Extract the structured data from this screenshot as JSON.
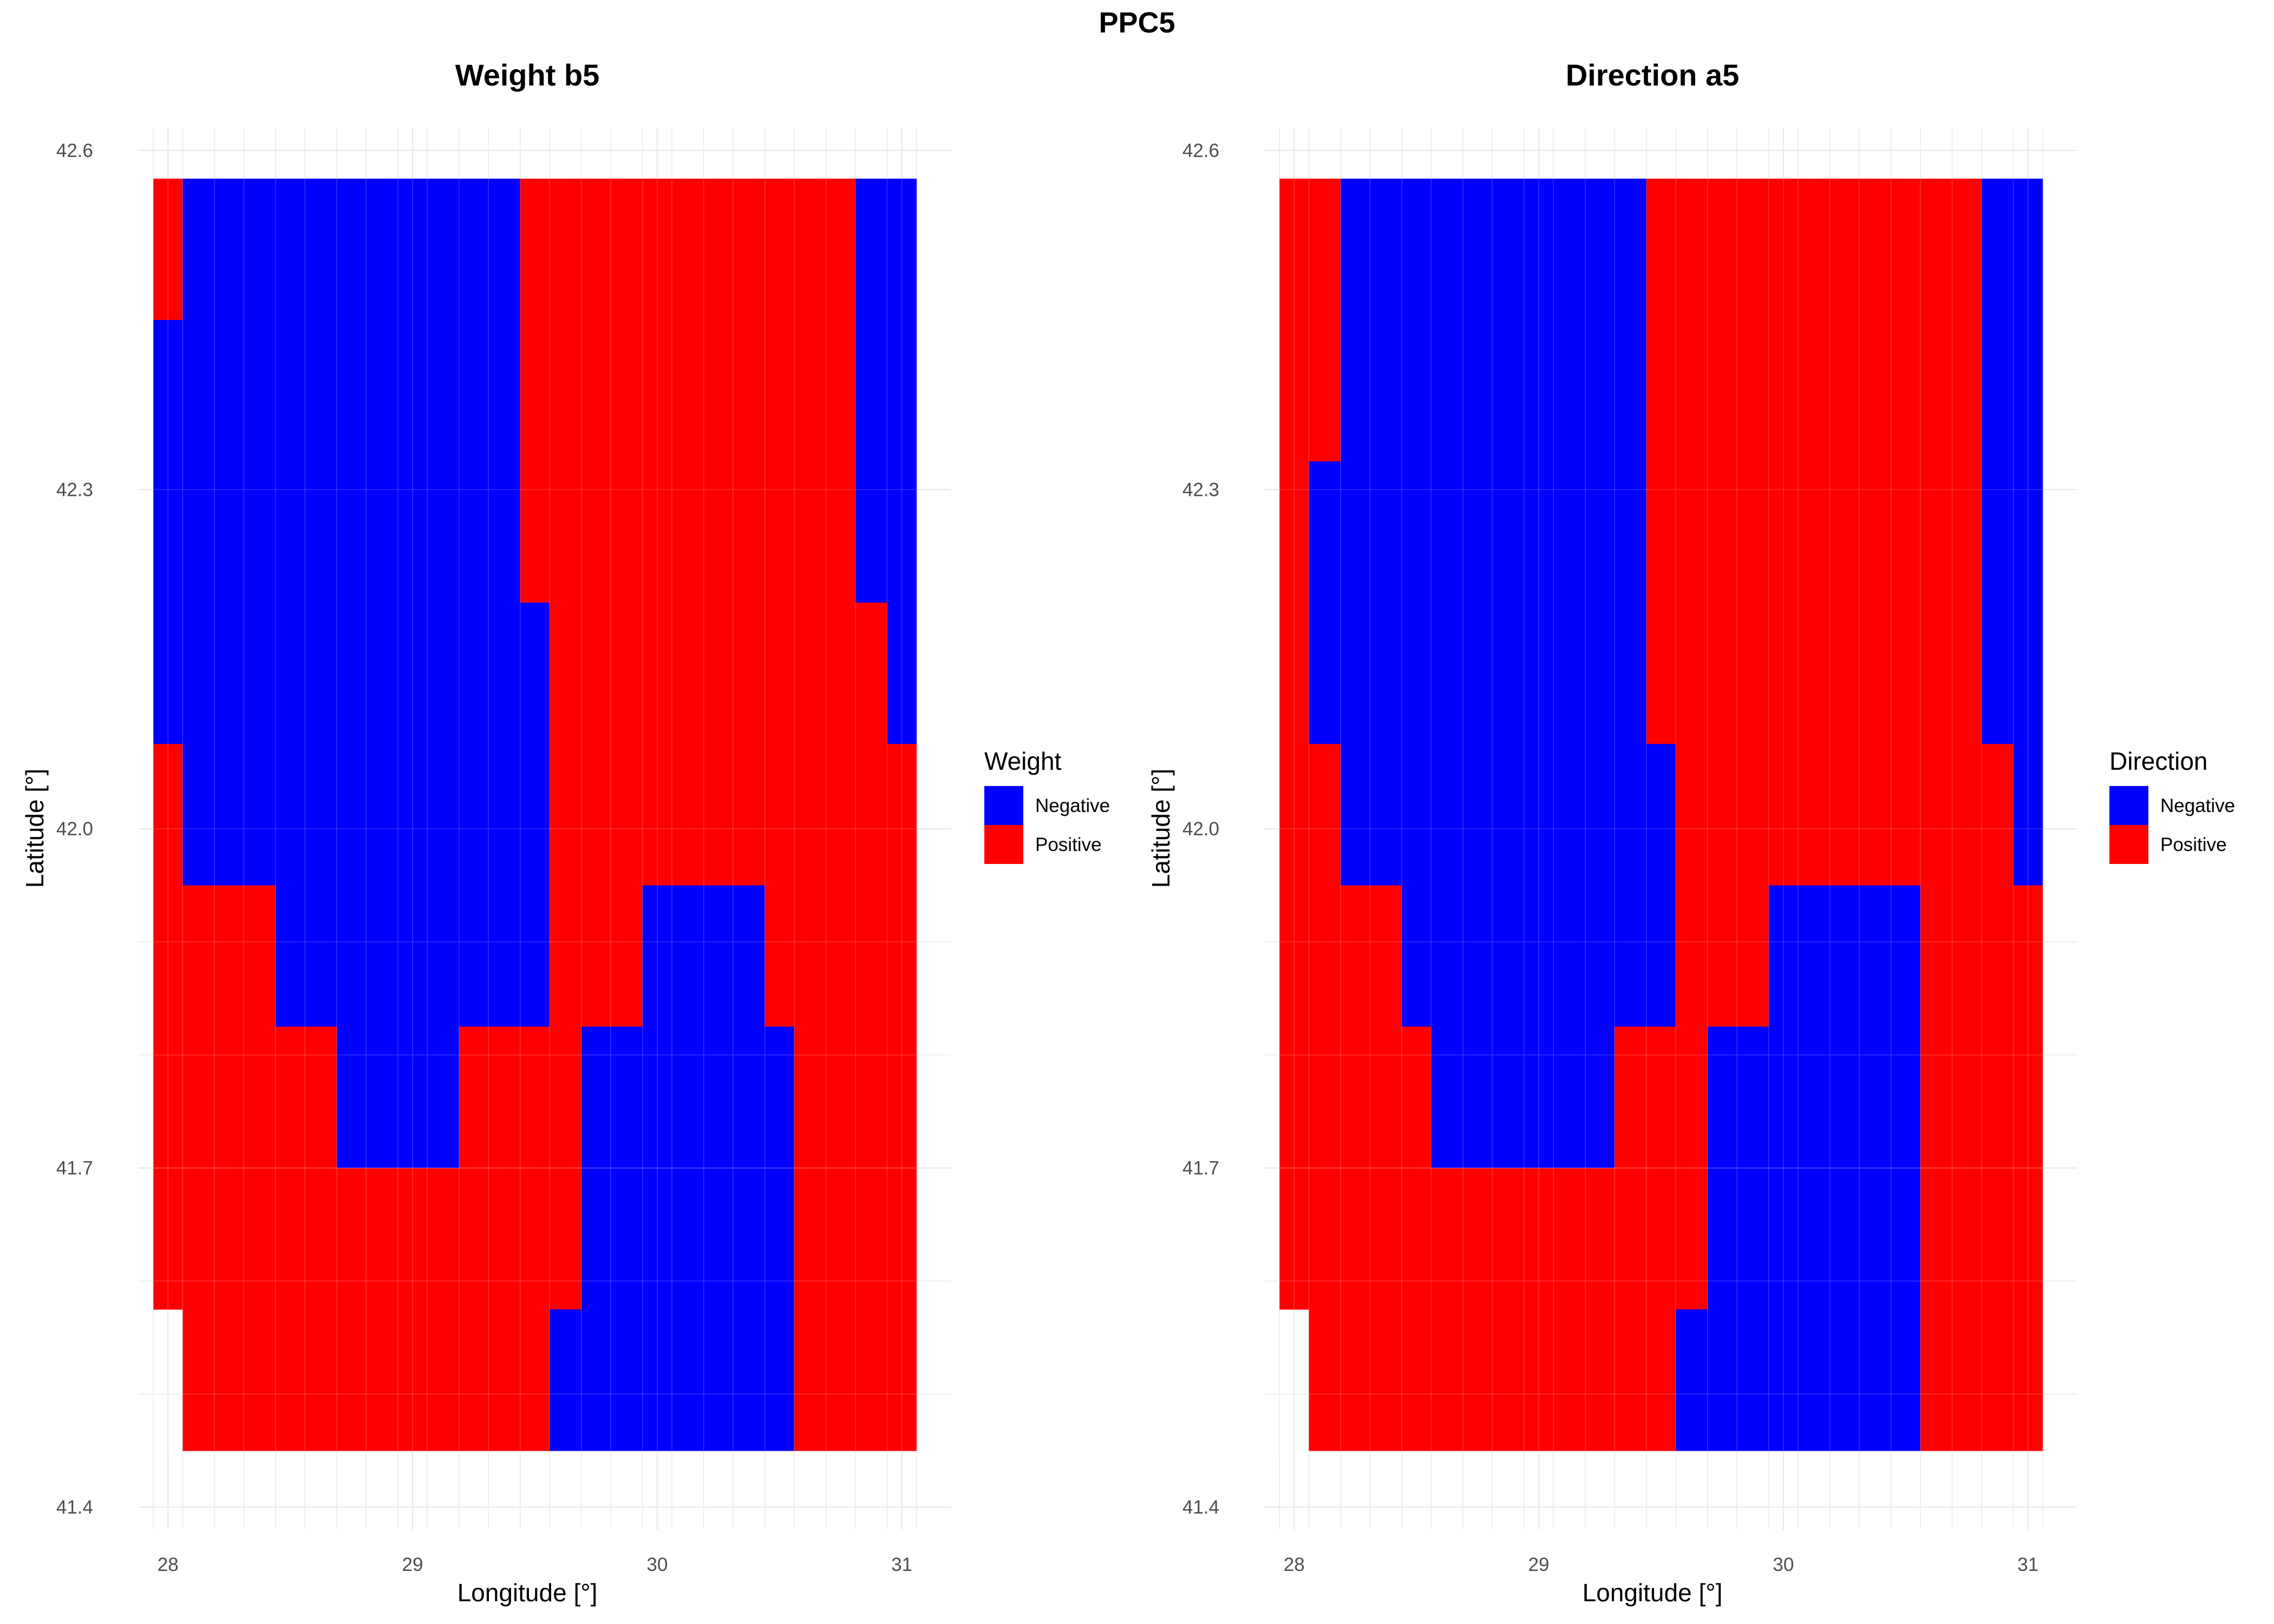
{
  "figure_title": "PPC5",
  "colors": {
    "Negative": "#0000ff",
    "Positive": "#ff0000",
    "grid": "#ebebeb"
  },
  "chart_data": [
    {
      "type": "heatmap",
      "title": "Weight b5",
      "xlabel": "Longitude [°]",
      "ylabel": "Latitude [°]",
      "xlim": [
        27.88,
        31.2
      ],
      "ylim": [
        41.38,
        42.62
      ],
      "x_ticks": [
        28,
        29,
        30,
        31
      ],
      "y_ticks": [
        41.4,
        41.7,
        42.0,
        42.3,
        42.6
      ],
      "x_tick_labels": [
        "28",
        "29",
        "30",
        "31"
      ],
      "y_tick_labels": [
        "41.4",
        "41.7",
        "42.0",
        "42.3",
        "42.6"
      ],
      "legend": {
        "title": "Weight",
        "position": "right",
        "entries": [
          "Negative",
          "Positive"
        ]
      },
      "x_breaks": [
        27.94,
        28.06,
        28.19,
        28.31,
        28.44,
        28.56,
        28.69,
        28.81,
        28.94,
        29.06,
        29.19,
        29.31,
        29.44,
        29.56,
        29.69,
        29.81,
        29.94,
        30.06,
        30.19,
        30.31,
        30.44,
        30.56,
        30.69,
        30.81,
        30.94,
        31.06
      ],
      "y_breaks": [
        41.5,
        41.6,
        41.7,
        41.8,
        41.9
      ],
      "cells": [
        {
          "x": [
            27.94,
            28.06
          ],
          "y": [
            42.45,
            42.575
          ],
          "v": "Positive"
        },
        {
          "x": [
            28.06,
            29.44
          ],
          "y": [
            42.45,
            42.575
          ],
          "v": "Negative"
        },
        {
          "x": [
            29.44,
            30.81
          ],
          "y": [
            42.45,
            42.575
          ],
          "v": "Positive"
        },
        {
          "x": [
            30.81,
            31.06
          ],
          "y": [
            42.45,
            42.575
          ],
          "v": "Negative"
        },
        {
          "x": [
            27.94,
            29.44
          ],
          "y": [
            42.2,
            42.45
          ],
          "v": "Negative"
        },
        {
          "x": [
            29.44,
            30.81
          ],
          "y": [
            42.2,
            42.45
          ],
          "v": "Positive"
        },
        {
          "x": [
            30.81,
            31.06
          ],
          "y": [
            42.2,
            42.45
          ],
          "v": "Negative"
        },
        {
          "x": [
            27.94,
            29.56
          ],
          "y": [
            42.075,
            42.2
          ],
          "v": "Negative"
        },
        {
          "x": [
            29.56,
            30.94
          ],
          "y": [
            42.075,
            42.2
          ],
          "v": "Positive"
        },
        {
          "x": [
            30.94,
            31.06
          ],
          "y": [
            42.075,
            42.2
          ],
          "v": "Negative"
        },
        {
          "x": [
            27.94,
            28.06
          ],
          "y": [
            41.95,
            42.075
          ],
          "v": "Positive"
        },
        {
          "x": [
            28.06,
            29.56
          ],
          "y": [
            41.95,
            42.075
          ],
          "v": "Negative"
        },
        {
          "x": [
            29.56,
            31.06
          ],
          "y": [
            41.95,
            42.075
          ],
          "v": "Positive"
        },
        {
          "x": [
            27.94,
            28.44
          ],
          "y": [
            41.825,
            41.95
          ],
          "v": "Positive"
        },
        {
          "x": [
            28.44,
            29.56
          ],
          "y": [
            41.825,
            41.95
          ],
          "v": "Negative"
        },
        {
          "x": [
            29.56,
            29.94
          ],
          "y": [
            41.825,
            41.95
          ],
          "v": "Positive"
        },
        {
          "x": [
            29.94,
            30.44
          ],
          "y": [
            41.825,
            41.95
          ],
          "v": "Negative"
        },
        {
          "x": [
            30.44,
            31.06
          ],
          "y": [
            41.825,
            41.95
          ],
          "v": "Positive"
        },
        {
          "x": [
            27.94,
            28.69
          ],
          "y": [
            41.7,
            41.825
          ],
          "v": "Positive"
        },
        {
          "x": [
            28.69,
            29.19
          ],
          "y": [
            41.7,
            41.825
          ],
          "v": "Negative"
        },
        {
          "x": [
            29.19,
            29.69
          ],
          "y": [
            41.7,
            41.825
          ],
          "v": "Positive"
        },
        {
          "x": [
            29.69,
            30.56
          ],
          "y": [
            41.7,
            41.825
          ],
          "v": "Negative"
        },
        {
          "x": [
            30.56,
            31.06
          ],
          "y": [
            41.7,
            41.825
          ],
          "v": "Positive"
        },
        {
          "x": [
            27.94,
            29.69
          ],
          "y": [
            41.575,
            41.7
          ],
          "v": "Positive"
        },
        {
          "x": [
            29.69,
            30.56
          ],
          "y": [
            41.575,
            41.7
          ],
          "v": "Negative"
        },
        {
          "x": [
            30.56,
            31.06
          ],
          "y": [
            41.575,
            41.7
          ],
          "v": "Positive"
        },
        {
          "x": [
            28.06,
            29.56
          ],
          "y": [
            41.45,
            41.575
          ],
          "v": "Positive"
        },
        {
          "x": [
            29.56,
            30.56
          ],
          "y": [
            41.45,
            41.575
          ],
          "v": "Negative"
        },
        {
          "x": [
            30.56,
            31.06
          ],
          "y": [
            41.45,
            41.575
          ],
          "v": "Positive"
        }
      ]
    },
    {
      "type": "heatmap",
      "title": "Direction a5",
      "xlabel": "Longitude [°]",
      "ylabel": "Latitude [°]",
      "xlim": [
        27.88,
        31.2
      ],
      "ylim": [
        41.38,
        42.62
      ],
      "x_ticks": [
        28,
        29,
        30,
        31
      ],
      "y_ticks": [
        41.4,
        41.7,
        42.0,
        42.3,
        42.6
      ],
      "x_tick_labels": [
        "28",
        "29",
        "30",
        "31"
      ],
      "y_tick_labels": [
        "41.4",
        "41.7",
        "42.0",
        "42.3",
        "42.6"
      ],
      "legend": {
        "title": "Direction",
        "position": "right",
        "entries": [
          "Negative",
          "Positive"
        ]
      },
      "x_breaks": [
        27.94,
        28.06,
        28.19,
        28.31,
        28.44,
        28.56,
        28.69,
        28.81,
        28.94,
        29.06,
        29.19,
        29.31,
        29.44,
        29.56,
        29.69,
        29.81,
        29.94,
        30.06,
        30.19,
        30.31,
        30.44,
        30.56,
        30.69,
        30.81,
        30.94,
        31.06
      ],
      "y_breaks": [
        41.5,
        41.6,
        41.7,
        41.8,
        41.9
      ],
      "cells": [
        {
          "x": [
            27.94,
            28.19
          ],
          "y": [
            42.325,
            42.575
          ],
          "v": "Positive"
        },
        {
          "x": [
            28.19,
            29.44
          ],
          "y": [
            42.325,
            42.575
          ],
          "v": "Negative"
        },
        {
          "x": [
            29.44,
            30.81
          ],
          "y": [
            42.325,
            42.575
          ],
          "v": "Positive"
        },
        {
          "x": [
            30.81,
            31.06
          ],
          "y": [
            42.325,
            42.575
          ],
          "v": "Negative"
        },
        {
          "x": [
            27.94,
            28.06
          ],
          "y": [
            42.075,
            42.325
          ],
          "v": "Positive"
        },
        {
          "x": [
            28.06,
            29.44
          ],
          "y": [
            42.075,
            42.325
          ],
          "v": "Negative"
        },
        {
          "x": [
            29.44,
            30.81
          ],
          "y": [
            42.075,
            42.325
          ],
          "v": "Positive"
        },
        {
          "x": [
            30.81,
            31.06
          ],
          "y": [
            42.075,
            42.325
          ],
          "v": "Negative"
        },
        {
          "x": [
            27.94,
            28.19
          ],
          "y": [
            41.95,
            42.075
          ],
          "v": "Positive"
        },
        {
          "x": [
            28.19,
            29.56
          ],
          "y": [
            41.95,
            42.075
          ],
          "v": "Negative"
        },
        {
          "x": [
            29.56,
            30.94
          ],
          "y": [
            41.95,
            42.075
          ],
          "v": "Positive"
        },
        {
          "x": [
            30.94,
            31.06
          ],
          "y": [
            41.95,
            42.075
          ],
          "v": "Negative"
        },
        {
          "x": [
            27.94,
            28.44
          ],
          "y": [
            41.825,
            41.95
          ],
          "v": "Positive"
        },
        {
          "x": [
            28.44,
            29.56
          ],
          "y": [
            41.825,
            41.95
          ],
          "v": "Negative"
        },
        {
          "x": [
            29.56,
            29.94
          ],
          "y": [
            41.825,
            41.95
          ],
          "v": "Positive"
        },
        {
          "x": [
            29.94,
            30.56
          ],
          "y": [
            41.825,
            41.95
          ],
          "v": "Negative"
        },
        {
          "x": [
            30.56,
            31.06
          ],
          "y": [
            41.825,
            41.95
          ],
          "v": "Positive"
        },
        {
          "x": [
            27.94,
            28.56
          ],
          "y": [
            41.7,
            41.825
          ],
          "v": "Positive"
        },
        {
          "x": [
            28.56,
            29.31
          ],
          "y": [
            41.7,
            41.825
          ],
          "v": "Negative"
        },
        {
          "x": [
            29.31,
            29.69
          ],
          "y": [
            41.7,
            41.825
          ],
          "v": "Positive"
        },
        {
          "x": [
            29.69,
            30.56
          ],
          "y": [
            41.7,
            41.825
          ],
          "v": "Negative"
        },
        {
          "x": [
            30.56,
            31.06
          ],
          "y": [
            41.7,
            41.825
          ],
          "v": "Positive"
        },
        {
          "x": [
            27.94,
            29.69
          ],
          "y": [
            41.575,
            41.7
          ],
          "v": "Positive"
        },
        {
          "x": [
            29.69,
            30.56
          ],
          "y": [
            41.575,
            41.7
          ],
          "v": "Negative"
        },
        {
          "x": [
            30.56,
            31.06
          ],
          "y": [
            41.575,
            41.7
          ],
          "v": "Positive"
        },
        {
          "x": [
            28.06,
            29.56
          ],
          "y": [
            41.45,
            41.575
          ],
          "v": "Positive"
        },
        {
          "x": [
            29.56,
            30.56
          ],
          "y": [
            41.45,
            41.575
          ],
          "v": "Negative"
        },
        {
          "x": [
            30.56,
            31.06
          ],
          "y": [
            41.45,
            41.575
          ],
          "v": "Positive"
        }
      ]
    }
  ]
}
